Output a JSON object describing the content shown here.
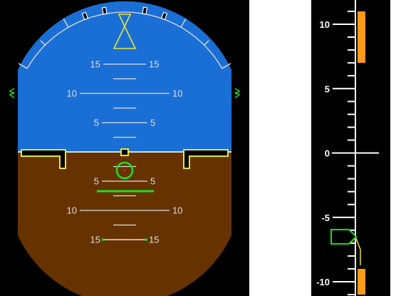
{
  "attitude_indicator": {
    "sky_color": "#1a6fd6",
    "ground_color": "#663300",
    "horizon_color": "#dddddd",
    "symbol_color": "#e6e62e",
    "flight_director_color": "#22dd22",
    "pitch_ladder": [
      {
        "pitch": 15,
        "left": "15",
        "right": "15"
      },
      {
        "pitch": 10,
        "left": "10",
        "right": "10"
      },
      {
        "pitch": 5,
        "left": "5",
        "right": "5"
      },
      {
        "pitch": -5,
        "left": "5",
        "right": "5"
      },
      {
        "pitch": -10,
        "left": "10",
        "right": "10"
      },
      {
        "pitch": -15,
        "left": "15",
        "right": "15"
      }
    ]
  },
  "vertical_speed_indicator": {
    "scale_labels": [
      {
        "value": 10,
        "text": "10"
      },
      {
        "value": 5,
        "text": "5"
      },
      {
        "value": 0,
        "text": "0"
      },
      {
        "value": -5,
        "text": "-5"
      },
      {
        "value": -10,
        "text": "-10"
      }
    ],
    "range": [
      -11,
      11
    ],
    "current_value": -7,
    "upper_band": [
      7,
      11
    ],
    "lower_band": [
      -11,
      -9
    ],
    "band_color": "#ff9a1a",
    "pointer_color": "#22dd22",
    "trend_color": "#e6e62e"
  }
}
